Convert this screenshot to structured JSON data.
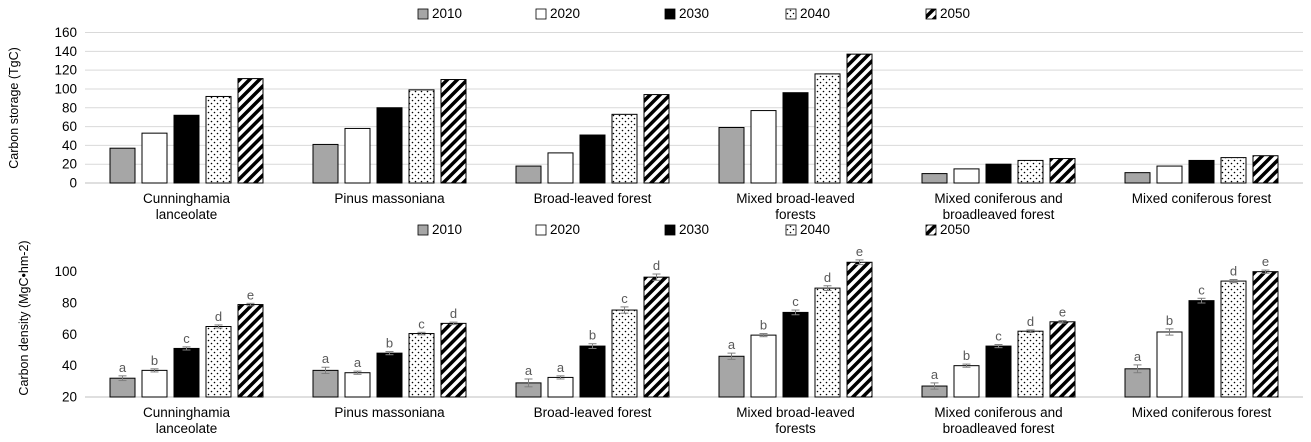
{
  "colors": {
    "grey_fill": "#a6a6a6",
    "black_fill": "#000000",
    "white_fill": "#ffffff",
    "outline": "#000000",
    "gridline": "#d9d9d9",
    "axis_text": "#000000",
    "letter_text": "#595959"
  },
  "chart_data": [
    {
      "type": "bar",
      "ylabel": "Carbon storage (TgC)",
      "ylim": [
        0,
        160
      ],
      "yticks": [
        0,
        20,
        40,
        60,
        80,
        100,
        120,
        140,
        160
      ],
      "grid": true,
      "legend": "top",
      "categories": [
        [
          "Cunninghamia",
          "lanceolate"
        ],
        [
          "Pinus massoniana"
        ],
        [
          "Broad-leaved forest"
        ],
        [
          "Mixed broad-leaved",
          "forests"
        ],
        [
          "Mixed coniferous and",
          "broadleaved forest"
        ],
        [
          "Mixed coniferous forest"
        ]
      ],
      "series": [
        {
          "name": "2010",
          "pattern": "grey",
          "values": [
            37,
            41,
            18,
            59,
            10,
            11
          ]
        },
        {
          "name": "2020",
          "pattern": "white",
          "values": [
            53,
            58,
            32,
            77,
            15,
            18
          ]
        },
        {
          "name": "2030",
          "pattern": "black",
          "values": [
            72,
            80,
            51,
            96,
            20,
            24
          ]
        },
        {
          "name": "2040",
          "pattern": "dots",
          "values": [
            92,
            99,
            73,
            116,
            24,
            27
          ]
        },
        {
          "name": "2050",
          "pattern": "diag",
          "values": [
            111,
            110,
            94,
            137,
            26,
            29
          ]
        }
      ]
    },
    {
      "type": "bar",
      "ylabel": "Carbon density (MgC•hm-2)",
      "ylim": [
        20,
        110
      ],
      "yticks": [
        20,
        40,
        60,
        80,
        100
      ],
      "grid": false,
      "legend": "top",
      "categories": [
        [
          "Cunninghamia",
          "lanceolate"
        ],
        [
          "Pinus massoniana"
        ],
        [
          "Broad-leaved forest"
        ],
        [
          "Mixed broad-leaved",
          "forests"
        ],
        [
          "Mixed coniferous and",
          "broadleaved forest"
        ],
        [
          "Mixed coniferous forest"
        ]
      ],
      "series": [
        {
          "name": "2010",
          "pattern": "grey",
          "values": [
            32,
            37,
            29,
            46,
            27,
            38
          ],
          "errors": [
            1.5,
            2.0,
            2.5,
            2.0,
            2.0,
            2.5
          ],
          "letters": [
            "a",
            "a",
            "a",
            "a",
            "a",
            "a"
          ]
        },
        {
          "name": "2020",
          "pattern": "white",
          "values": [
            37,
            35.5,
            32.5,
            59.5,
            40,
            61.5
          ],
          "errors": [
            1.0,
            1.0,
            1.0,
            1.0,
            1.0,
            2.0
          ],
          "letters": [
            "b",
            "a",
            "a",
            "b",
            "b",
            "b"
          ]
        },
        {
          "name": "2030",
          "pattern": "black",
          "values": [
            51,
            48,
            52.5,
            74,
            52.5,
            81.5
          ],
          "errors": [
            1.0,
            1.0,
            1.5,
            1.5,
            1.0,
            1.5
          ],
          "letters": [
            "c",
            "b",
            "b",
            "c",
            "c",
            "c"
          ]
        },
        {
          "name": "2040",
          "pattern": "dots",
          "values": [
            65,
            60.5,
            75.5,
            89.5,
            62,
            94
          ],
          "errors": [
            1.0,
            0.8,
            2.0,
            1.5,
            0.8,
            1.0
          ],
          "letters": [
            "d",
            "c",
            "c",
            "d",
            "d",
            "d"
          ]
        },
        {
          "name": "2050",
          "pattern": "diag",
          "values": [
            79,
            67,
            96.5,
            106,
            68,
            100
          ],
          "errors": [
            0.8,
            0.8,
            2.0,
            1.5,
            0.8,
            1.0
          ],
          "letters": [
            "e",
            "d",
            "d",
            "e",
            "e",
            "e"
          ]
        }
      ]
    }
  ]
}
